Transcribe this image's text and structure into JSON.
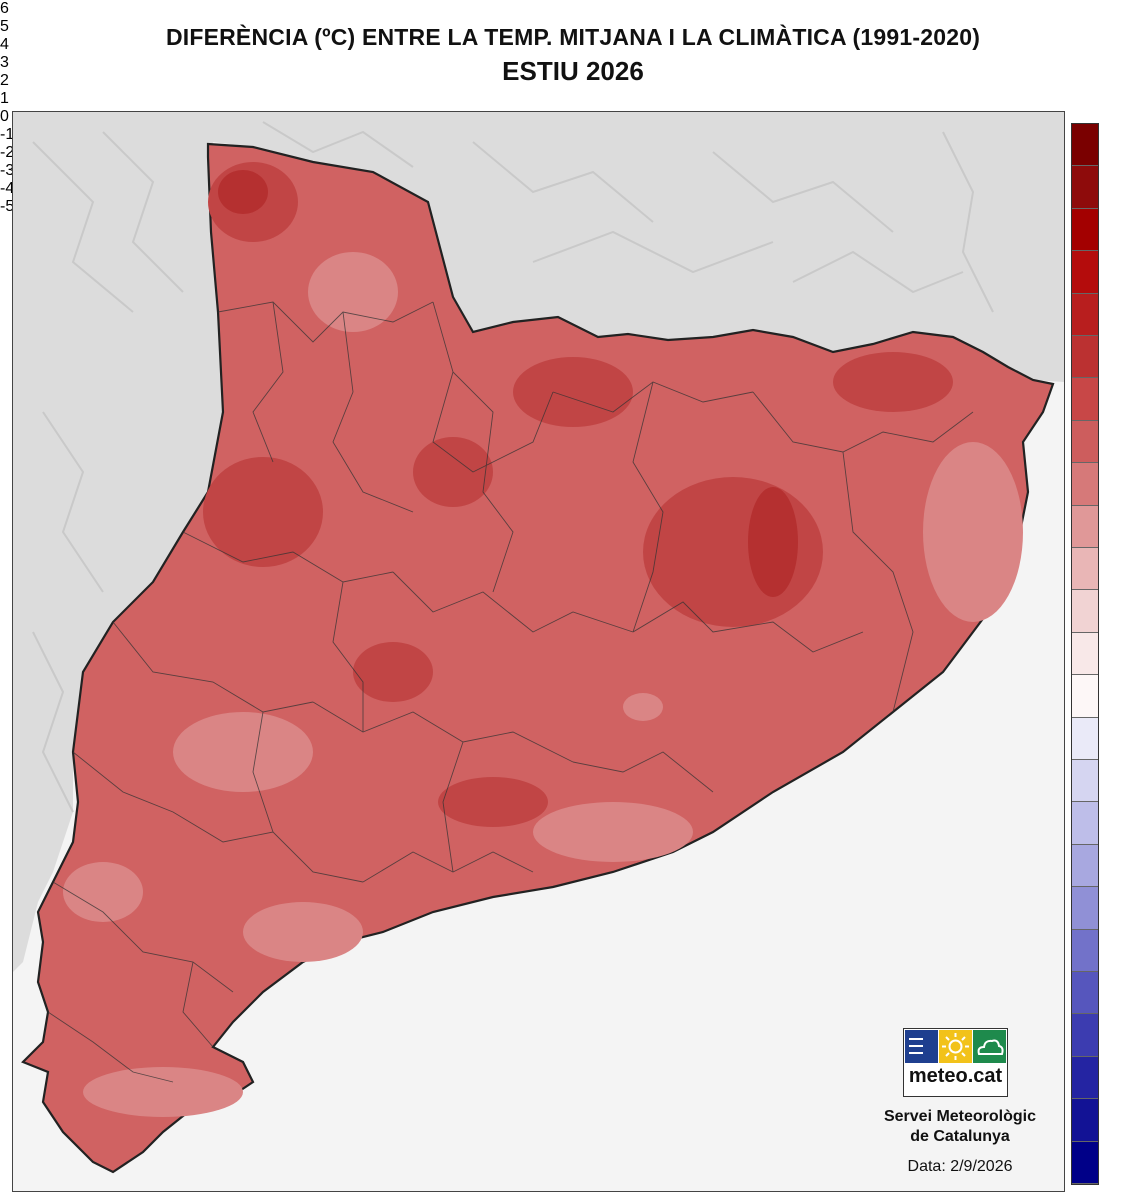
{
  "title": "DIFERÈNCIA (ºC) ENTRE LA TEMP. MITJANA I LA CLIMÀTICA (1991-2020)",
  "subtitle": "ESTIU 2026",
  "legend": {
    "bands": [
      {
        "from": 6.5,
        "to": 7.0,
        "color": "#7a0000"
      },
      {
        "from": 6.0,
        "to": 6.5,
        "color": "#8e0b0b"
      },
      {
        "from": 5.5,
        "to": 6.0,
        "color": "#a30000"
      },
      {
        "from": 5.0,
        "to": 5.5,
        "color": "#b40c0c"
      },
      {
        "from": 4.5,
        "to": 5.0,
        "color": "#b81e1e"
      },
      {
        "from": 4.0,
        "to": 4.5,
        "color": "#bb3131"
      },
      {
        "from": 3.5,
        "to": 4.0,
        "color": "#c84747"
      },
      {
        "from": 3.0,
        "to": 3.5,
        "color": "#cd5d5d"
      },
      {
        "from": 2.5,
        "to": 3.0,
        "color": "#d67979"
      },
      {
        "from": 2.0,
        "to": 2.5,
        "color": "#e09898"
      },
      {
        "from": 1.5,
        "to": 2.0,
        "color": "#e9b6b6"
      },
      {
        "from": 1.0,
        "to": 1.5,
        "color": "#f1d3d3"
      },
      {
        "from": 0.5,
        "to": 1.0,
        "color": "#f8e8e8"
      },
      {
        "from": 0.0,
        "to": 0.5,
        "color": "#fdf7f7"
      },
      {
        "from": -0.5,
        "to": 0.0,
        "color": "#eaeaf8"
      },
      {
        "from": -1.0,
        "to": -0.5,
        "color": "#d5d5f1"
      },
      {
        "from": -1.5,
        "to": -1.0,
        "color": "#bebee9"
      },
      {
        "from": -2.0,
        "to": -1.5,
        "color": "#a8a8e0"
      },
      {
        "from": -2.5,
        "to": -2.0,
        "color": "#9090d6"
      },
      {
        "from": -3.0,
        "to": -2.5,
        "color": "#7272c9"
      },
      {
        "from": -3.5,
        "to": -3.0,
        "color": "#5656bd"
      },
      {
        "from": -4.0,
        "to": -3.5,
        "color": "#3c3cb0"
      },
      {
        "from": -4.5,
        "to": -4.0,
        "color": "#2424a2"
      },
      {
        "from": -5.0,
        "to": -4.5,
        "color": "#121295"
      },
      {
        "from": -5.5,
        "to": -5.0,
        "color": "#000088"
      }
    ],
    "ticks": [
      "6",
      "5",
      "4",
      "3",
      "2",
      "1",
      "0",
      "-1",
      "-2",
      "-3",
      "-4",
      "-5"
    ],
    "tick_values": [
      6,
      5,
      4,
      3,
      2,
      1,
      0,
      -1,
      -2,
      -3,
      -4,
      -5
    ]
  },
  "colors": {
    "sea": "#f4f4f4",
    "land_relief": "#dcdcdc",
    "anomaly_base": "#d06262",
    "anomaly_high": "#bb3131",
    "anomaly_low": "#d98080",
    "border": "#222222"
  },
  "logo": {
    "brand": "meteo.cat",
    "cell_colors": [
      "#1f3f8f",
      "#f2c21a",
      "#1e8a4c"
    ],
    "icons": [
      "lines-icon",
      "sun-icon",
      "cloud-icon"
    ]
  },
  "org_line1": "Servei Meteorològic",
  "org_line2": "de Catalunya",
  "date": "Data: 2/9/2026"
}
